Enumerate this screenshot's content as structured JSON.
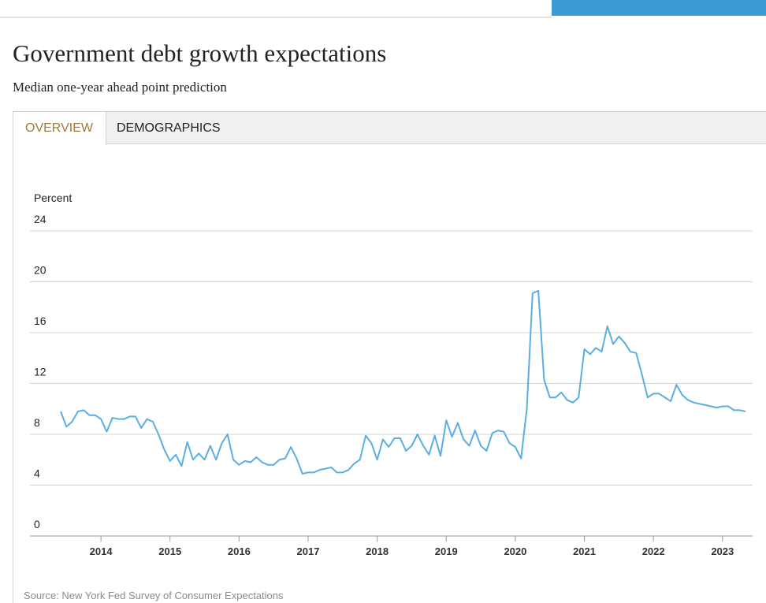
{
  "chart_data": {
    "type": "line",
    "title": "Government debt growth expectations",
    "subtitle": "Median one-year ahead point prediction",
    "tabs": [
      "OVERVIEW",
      "DEMOGRAPHICS"
    ],
    "y_label": "Percent",
    "source": "Source: New York Fed Survey of Consumer Expectations",
    "categories": [
      null,
      null,
      null,
      null,
      null,
      null,
      null,
      "2014",
      null,
      null,
      null,
      null,
      null,
      null,
      null,
      null,
      null,
      null,
      null,
      "2015",
      null,
      null,
      null,
      null,
      null,
      null,
      null,
      null,
      null,
      null,
      null,
      "2016",
      null,
      null,
      null,
      null,
      null,
      null,
      null,
      null,
      null,
      null,
      null,
      "2017",
      null,
      null,
      null,
      null,
      null,
      null,
      null,
      null,
      null,
      null,
      null,
      "2018",
      null,
      null,
      null,
      null,
      null,
      null,
      null,
      null,
      null,
      null,
      null,
      "2019",
      null,
      null,
      null,
      null,
      null,
      null,
      null,
      null,
      null,
      null,
      null,
      "2020",
      null,
      null,
      null,
      null,
      null,
      null,
      null,
      null,
      null,
      null,
      null,
      "2021",
      null,
      null,
      null,
      null,
      null,
      null,
      null,
      null,
      null,
      null,
      null,
      "2022",
      null,
      null,
      null,
      null,
      null,
      null,
      null,
      null,
      null,
      null,
      null,
      "2023",
      null,
      null,
      null,
      null
    ],
    "series": [
      {
        "name": "Government debt growth",
        "color": "#5aaee0",
        "values": [
          9.8,
          8.6,
          9.0,
          9.8,
          9.9,
          9.5,
          9.5,
          9.2,
          8.2,
          9.3,
          9.2,
          9.2,
          9.4,
          9.4,
          8.5,
          9.2,
          9.0,
          8.0,
          6.8,
          5.9,
          6.4,
          5.5,
          7.4,
          6.0,
          6.5,
          6.0,
          7.1,
          6.0,
          7.3,
          8.0,
          6.0,
          5.6,
          5.9,
          5.8,
          6.2,
          5.8,
          5.6,
          5.6,
          6.0,
          6.1,
          7.0,
          6.1,
          4.9,
          5.0,
          5.0,
          5.2,
          5.3,
          5.4,
          5.0,
          5.0,
          5.2,
          5.7,
          6.0,
          7.9,
          7.3,
          6.0,
          7.6,
          7.0,
          7.7,
          7.7,
          6.7,
          7.1,
          8.0,
          7.1,
          6.4,
          7.9,
          6.3,
          9.1,
          7.8,
          8.9,
          7.6,
          7.1,
          8.3,
          7.1,
          6.7,
          8.1,
          8.3,
          8.2,
          7.3,
          7.0,
          6.1,
          10.0,
          19.1,
          19.3,
          12.3,
          10.9,
          10.9,
          11.3,
          10.7,
          10.5,
          10.9,
          14.7,
          14.3,
          14.8,
          14.5,
          16.5,
          15.1,
          15.7,
          15.2,
          14.5,
          14.4,
          12.7,
          10.9,
          11.2,
          11.2,
          10.9,
          10.6,
          11.9,
          11.1,
          10.7,
          10.5,
          10.4,
          10.3,
          10.2,
          10.1,
          10.2,
          10.2,
          9.9,
          9.9,
          9.8
        ]
      }
    ],
    "ylim": [
      0,
      24
    ],
    "yticks": [
      0,
      4,
      8,
      12,
      16,
      20,
      24
    ],
    "grid": true
  }
}
